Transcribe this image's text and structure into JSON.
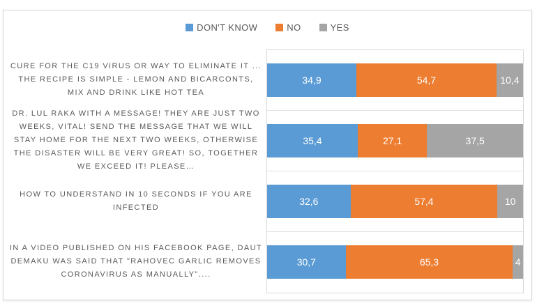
{
  "colors": {
    "dont_know": "#5B9BD5",
    "no": "#ED7D31",
    "yes": "#A5A5A5",
    "frame_border": "#D3D3D3",
    "plot_border": "#D9D9D9",
    "label_text": "#595959",
    "bar_value_text": "#FFFFFF"
  },
  "legend": {
    "position": "top",
    "items": [
      {
        "label": "DON'T KNOW",
        "color": "#5B9BD5"
      },
      {
        "label": "NO",
        "color": "#ED7D31"
      },
      {
        "label": "YES",
        "color": "#A5A5A5"
      }
    ]
  },
  "chart_data": {
    "type": "bar",
    "orientation": "horizontal-stacked",
    "title": "",
    "xlim": [
      0,
      100
    ],
    "grid": "category-separator-lines",
    "legend_position": "top",
    "categories": [
      "CURE FOR THE C19 VIRUS OR WAY TO ELIMINATE IT ... THE RECIPE IS SIMPLE - LEMON AND BICARCONTS, MIX AND DRINK LIKE HOT TEA",
      "DR. LUL RAKA WITH A MESSAGE! THEY ARE JUST TWO WEEKS, VITAL! SEND THE MESSAGE THAT WE WILL STAY HOME FOR THE NEXT TWO WEEKS, OTHERWISE THE DISASTER WILL BE VERY GREAT! SO, TOGETHER WE EXCEED IT! PLEASE…",
      "HOW TO UNDERSTAND IN 10 SECONDS IF YOU ARE INFECTED",
      "IN A VIDEO PUBLISHED ON HIS FACEBOOK PAGE, DAUT DEMAKU WAS SAID THAT \"RAHOVEC GARLIC REMOVES CORONAVIRUS AS MANUALLY\"...."
    ],
    "series": [
      {
        "name": "DON'T KNOW",
        "color": "#5B9BD5",
        "values": [
          34.9,
          35.4,
          32.6,
          30.7
        ]
      },
      {
        "name": "NO",
        "color": "#ED7D31",
        "values": [
          54.7,
          27.1,
          57.4,
          65.3
        ]
      },
      {
        "name": "YES",
        "color": "#A5A5A5",
        "values": [
          10.4,
          37.5,
          10,
          4
        ]
      }
    ],
    "value_labels": [
      [
        "34,9",
        "54,7",
        "10,4"
      ],
      [
        "35,4",
        "27,1",
        "37,5"
      ],
      [
        "32,6",
        "57,4",
        "10"
      ],
      [
        "30,7",
        "65,3",
        "4"
      ]
    ]
  }
}
